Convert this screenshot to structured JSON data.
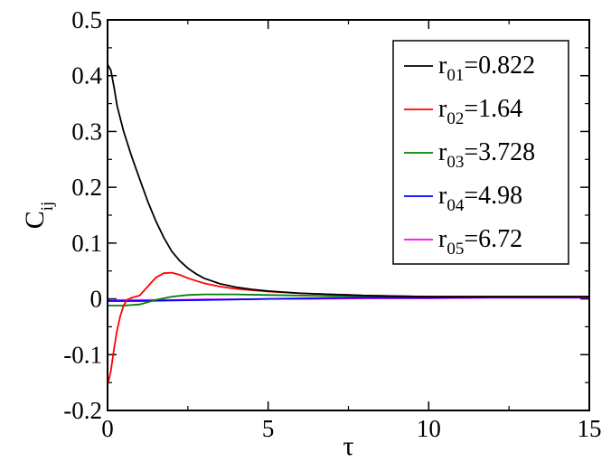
{
  "chart_data": {
    "type": "line",
    "xlabel": "τ",
    "ylabel": {
      "base": "C",
      "sub": "ij"
    },
    "xlim": [
      0,
      15
    ],
    "ylim": [
      -0.2,
      0.5
    ],
    "xticks": [
      0,
      5,
      10,
      15
    ],
    "yticks": [
      -0.2,
      -0.1,
      0,
      0.1,
      0.2,
      0.3,
      0.4,
      0.5
    ],
    "xtick_labels": [
      "0",
      "5",
      "10",
      "15"
    ],
    "ytick_labels": [
      "-0.2",
      "-0.1",
      "0",
      "0.1",
      "0.2",
      "0.3",
      "0.4",
      "0.5"
    ],
    "grid": false,
    "legend_position": "top-right",
    "series": [
      {
        "name": "r01=0.822",
        "label": {
          "base": "r",
          "sub": "01",
          "rest": "=0.822"
        },
        "color": "#000000",
        "x": [
          0,
          0.1,
          0.2,
          0.3,
          0.5,
          0.75,
          1.0,
          1.25,
          1.5,
          1.75,
          2.0,
          2.25,
          2.5,
          2.75,
          3.0,
          3.5,
          4.0,
          4.5,
          5.0,
          6.0,
          7.0,
          8.0,
          9.0,
          10.0,
          11.0,
          12.0,
          13.0,
          14.0,
          15.0
        ],
        "y": [
          0.42,
          0.41,
          0.38,
          0.345,
          0.3,
          0.255,
          0.215,
          0.175,
          0.14,
          0.11,
          0.085,
          0.068,
          0.055,
          0.045,
          0.037,
          0.027,
          0.021,
          0.017,
          0.014,
          0.01,
          0.008,
          0.006,
          0.005,
          0.004,
          0.004,
          0.004,
          0.004,
          0.004,
          0.004
        ]
      },
      {
        "name": "r02=1.64",
        "label": {
          "base": "r",
          "sub": "02",
          "rest": "=1.64"
        },
        "color": "#ff0000",
        "x": [
          0,
          0.1,
          0.2,
          0.3,
          0.4,
          0.5,
          0.6,
          0.75,
          1.0,
          1.25,
          1.5,
          1.75,
          2.0,
          2.25,
          2.5,
          3.0,
          3.5,
          4.0,
          5.0,
          6.0,
          7.0,
          8.0,
          9.0,
          10.0,
          11.0,
          12.0,
          13.0,
          14.0,
          15.0
        ],
        "y": [
          -0.155,
          -0.13,
          -0.09,
          -0.055,
          -0.03,
          -0.012,
          -0.002,
          0.002,
          0.006,
          0.022,
          0.038,
          0.046,
          0.047,
          0.043,
          0.037,
          0.028,
          0.022,
          0.018,
          0.013,
          0.01,
          0.008,
          0.006,
          0.005,
          0.004,
          0.004,
          0.004,
          0.004,
          0.004,
          0.004
        ]
      },
      {
        "name": "r03=3.728",
        "label": {
          "base": "r",
          "sub": "03",
          "rest": "=3.728"
        },
        "color": "#008000",
        "x": [
          0,
          0.5,
          1.0,
          1.25,
          1.5,
          2.0,
          2.5,
          3.0,
          4.0,
          5.0,
          6.0,
          7.0,
          8.0,
          10.0,
          12.0,
          15.0
        ],
        "y": [
          -0.012,
          -0.012,
          -0.01,
          -0.006,
          -0.002,
          0.004,
          0.007,
          0.008,
          0.008,
          0.007,
          0.006,
          0.005,
          0.005,
          0.004,
          0.004,
          0.004
        ]
      },
      {
        "name": "r04=4.98",
        "label": {
          "base": "r",
          "sub": "04",
          "rest": "=4.98"
        },
        "color": "#0000ff",
        "x": [
          0,
          1,
          2,
          3,
          4,
          5,
          6,
          8,
          10,
          12,
          15
        ],
        "y": [
          -0.004,
          -0.004,
          -0.003,
          -0.002,
          -0.001,
          0.0,
          0.001,
          0.002,
          0.002,
          0.003,
          0.003
        ]
      },
      {
        "name": "r05=6.72",
        "label": {
          "base": "r",
          "sub": "05",
          "rest": "=6.72"
        },
        "color": "#ff00ff",
        "x": [
          0,
          1,
          2,
          3,
          4,
          5,
          6,
          8,
          10,
          12,
          15
        ],
        "y": [
          -0.002,
          -0.002,
          -0.002,
          -0.001,
          -0.001,
          0.0,
          0.0,
          0.001,
          0.001,
          0.002,
          0.002
        ]
      }
    ]
  }
}
